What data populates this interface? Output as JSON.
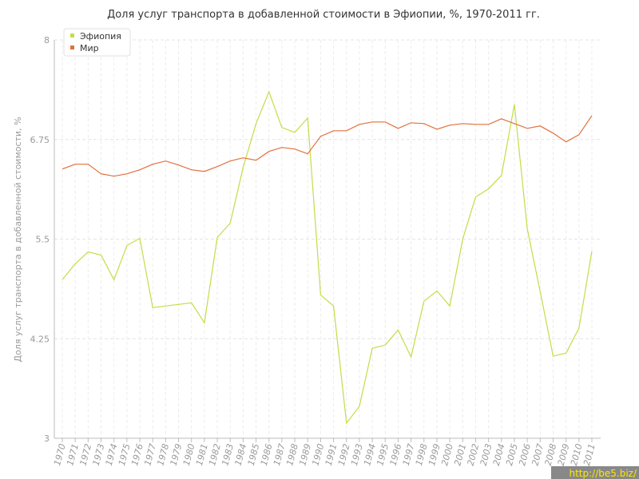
{
  "chart_data": {
    "type": "line",
    "title": "Доля услуг транспорта в добавленной стоимости в Эфиопии, %, 1970-2011 гг.",
    "y_label": "Доля услуг транспорта в добавленной стоимости, %",
    "categories": [
      "1970",
      "1971",
      "1972",
      "1973",
      "1974",
      "1975",
      "1976",
      "1977",
      "1978",
      "1979",
      "1980",
      "1981",
      "1982",
      "1983",
      "1984",
      "1985",
      "1986",
      "1987",
      "1988",
      "1989",
      "1990",
      "1991",
      "1992",
      "1993",
      "1994",
      "1995",
      "1996",
      "1997",
      "1998",
      "1999",
      "2000",
      "2001",
      "2002",
      "2003",
      "2004",
      "2005",
      "2006",
      "2007",
      "2008",
      "2009",
      "2010",
      "2011"
    ],
    "series": [
      {
        "name": "Эфиопия",
        "color": "#c5dc46",
        "values": [
          4.99,
          5.19,
          5.34,
          5.3,
          4.99,
          5.42,
          5.51,
          4.64,
          4.66,
          4.68,
          4.7,
          4.45,
          5.52,
          5.7,
          6.4,
          6.95,
          7.35,
          6.9,
          6.84,
          7.02,
          4.8,
          4.66,
          3.19,
          3.4,
          4.13,
          4.17,
          4.36,
          4.02,
          4.72,
          4.85,
          4.66,
          5.5,
          6.03,
          6.13,
          6.3,
          7.19,
          5.63,
          4.84,
          4.03,
          4.07,
          4.38,
          5.35
        ]
      },
      {
        "name": "Мир",
        "color": "#e2703c",
        "values": [
          6.38,
          6.44,
          6.44,
          6.32,
          6.29,
          6.32,
          6.37,
          6.44,
          6.48,
          6.43,
          6.37,
          6.35,
          6.41,
          6.48,
          6.52,
          6.49,
          6.6,
          6.65,
          6.63,
          6.57,
          6.79,
          6.86,
          6.86,
          6.94,
          6.97,
          6.97,
          6.89,
          6.96,
          6.95,
          6.88,
          6.93,
          6.95,
          6.94,
          6.94,
          7.01,
          6.95,
          6.89,
          6.92,
          6.83,
          6.72,
          6.81,
          7.05
        ]
      }
    ],
    "ylim": [
      3,
      8
    ],
    "yticks": [
      3,
      4.25,
      5.5,
      6.75,
      8
    ],
    "grid": true,
    "legend": "top-left",
    "watermark": "http://be5.biz/"
  }
}
